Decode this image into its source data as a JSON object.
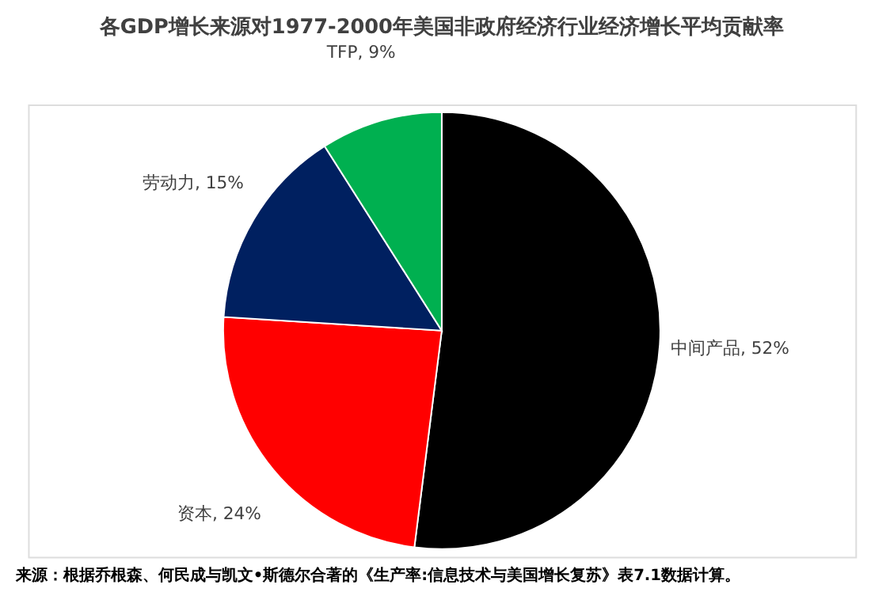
{
  "chart_data": {
    "type": "pie",
    "title": "各GDP增长来源对1977-2000年美国非政府经济行业经济增长平均贡献率",
    "categories": [
      "中间产品",
      "资本",
      "劳动力",
      "TFP"
    ],
    "values": [
      52,
      24,
      15,
      9
    ],
    "colors": [
      "#000000",
      "#ff0000",
      "#002060",
      "#00b050"
    ],
    "value_labels": [
      "52%",
      "24%",
      "15%",
      "9%"
    ],
    "legend": false,
    "annotations": [
      "来源：根据乔根森、何民成与凯文•斯德尔合著的《生产率:信息技术与美国增长复苏》表7.1数据计算。"
    ]
  }
}
